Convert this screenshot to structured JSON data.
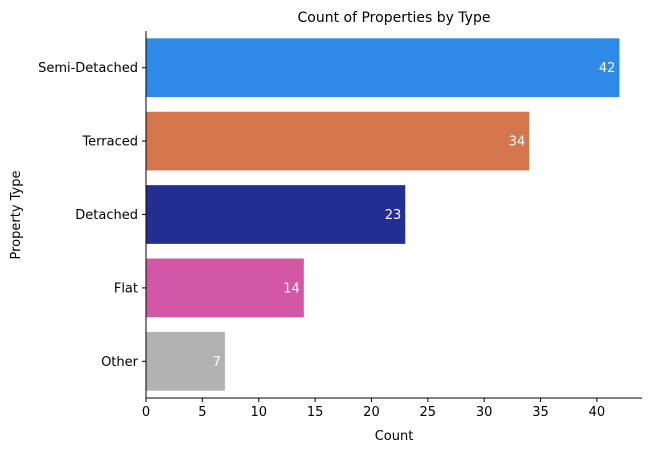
{
  "chart_data": {
    "type": "bar",
    "orientation": "horizontal",
    "title": "Count of Properties by Type",
    "xlabel": "Count",
    "ylabel": "Property Type",
    "categories": [
      "Semi-Detached",
      "Terraced",
      "Detached",
      "Flat",
      "Other"
    ],
    "values": [
      42,
      34,
      23,
      14,
      7
    ],
    "colors": [
      "#2e8ae6",
      "#d4754c",
      "#222e92",
      "#d257a6",
      "#b2b2b2"
    ],
    "xlim": [
      0,
      44
    ],
    "xticks": [
      0,
      5,
      10,
      15,
      20,
      25,
      30,
      35,
      40
    ],
    "data_labels": [
      "42",
      "34",
      "23",
      "14",
      "7"
    ],
    "grid": false,
    "legend": "none"
  }
}
